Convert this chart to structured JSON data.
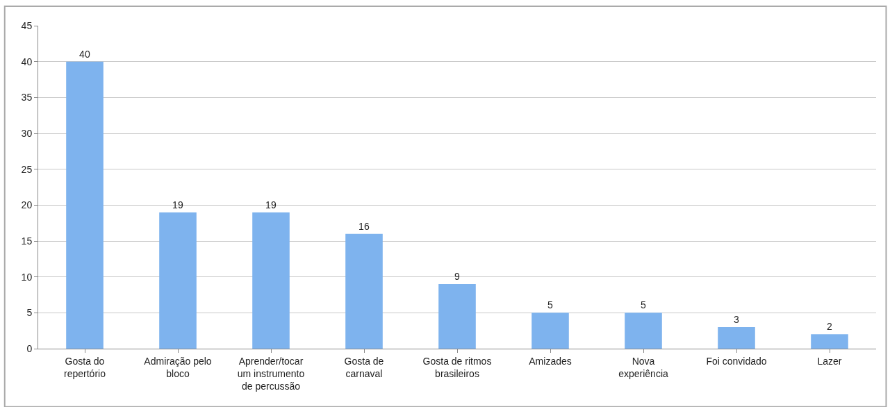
{
  "chart_data": {
    "type": "bar",
    "categories": [
      "Gosta do\nrepertório",
      "Admiração pelo\nbloco",
      "Aprender/tocar\num instrumento\nde percussão",
      "Gosta de\ncarnaval",
      "Gosta de ritmos\nbrasileiros",
      "Amizades",
      "Nova\nexperiência",
      "Foi convidado",
      "Lazer"
    ],
    "values": [
      40,
      19,
      19,
      16,
      9,
      5,
      5,
      3,
      2
    ],
    "color": "#7eb3ee",
    "ylim": [
      0,
      45
    ],
    "yticks": [
      0,
      5,
      10,
      15,
      20,
      25,
      30,
      35,
      40,
      45
    ],
    "grid": "y",
    "data_labels": true,
    "legend": false
  }
}
